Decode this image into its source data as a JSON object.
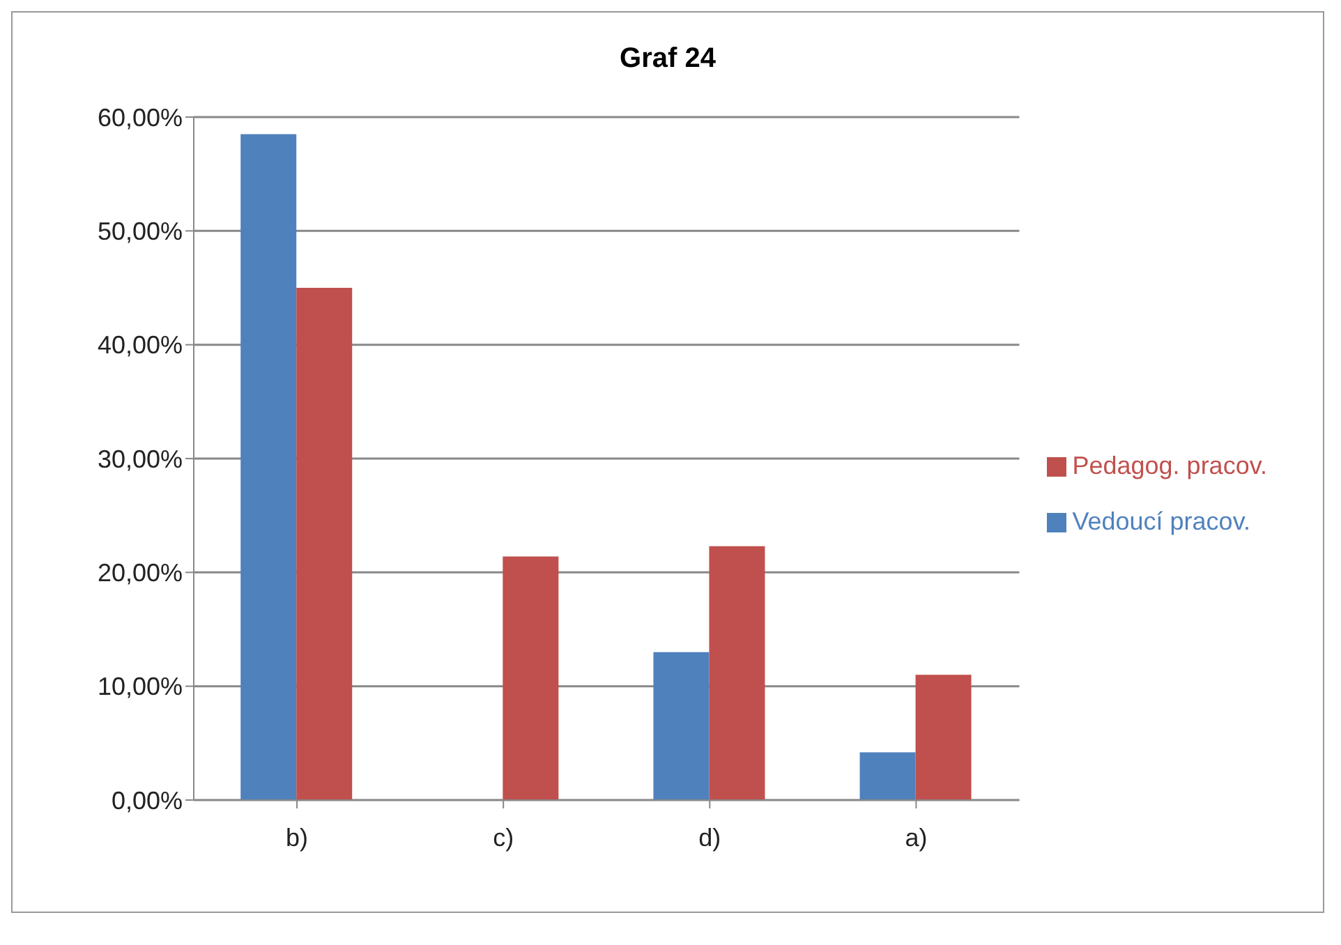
{
  "chart_data": {
    "type": "bar",
    "title": "Graf 24",
    "categories": [
      "b)",
      "c)",
      "d)",
      "a)"
    ],
    "series": [
      {
        "name": "Vedoucí pracov.",
        "color": "#4f81bd",
        "values": [
          58.5,
          0,
          13.0,
          4.2
        ]
      },
      {
        "name": "Pedagog. pracov.",
        "color": "#c0504d",
        "values": [
          45.0,
          21.4,
          22.3,
          11.0
        ]
      }
    ],
    "ylim": [
      0,
      60
    ],
    "yticks": [
      {
        "value": 0,
        "label": "0,00%"
      },
      {
        "value": 10,
        "label": "10,00%"
      },
      {
        "value": 20,
        "label": "20,00%"
      },
      {
        "value": 30,
        "label": "30,00%"
      },
      {
        "value": 40,
        "label": "40,00%"
      },
      {
        "value": 50,
        "label": "50,00%"
      },
      {
        "value": 60,
        "label": "60,00%"
      }
    ],
    "grid": "y",
    "legend": "right"
  }
}
